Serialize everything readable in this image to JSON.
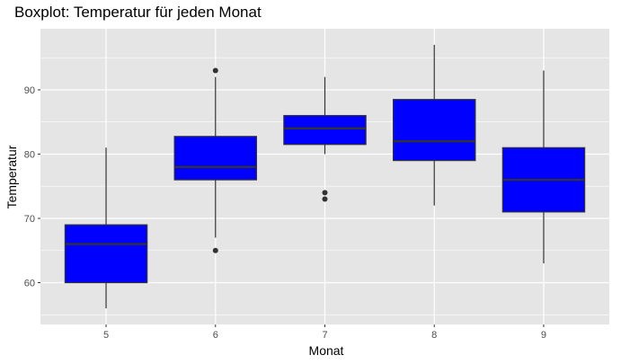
{
  "chart_data": {
    "type": "boxplot",
    "title": "Boxplot: Temperatur für jeden Monat",
    "xlabel": "Monat",
    "ylabel": "Temperatur",
    "categories": [
      "5",
      "6",
      "7",
      "8",
      "9"
    ],
    "ylim": [
      53.5,
      99.5
    ],
    "yticks": [
      60,
      70,
      80,
      90
    ],
    "grid": true,
    "box_fill": "#0000ff",
    "panel_background": "#e5e5e5",
    "grid_color": "#ffffff",
    "boxes": [
      {
        "category": "5",
        "whisker_low": 56,
        "q1": 60,
        "median": 66,
        "q3": 69,
        "whisker_high": 81,
        "outliers": []
      },
      {
        "category": "6",
        "whisker_low": 67,
        "q1": 76,
        "median": 78,
        "q3": 82.75,
        "whisker_high": 92,
        "outliers": [
          65,
          93
        ]
      },
      {
        "category": "7",
        "whisker_low": 80,
        "q1": 81.5,
        "median": 84,
        "q3": 86,
        "whisker_high": 92,
        "outliers": [
          73,
          74
        ]
      },
      {
        "category": "8",
        "whisker_low": 72,
        "q1": 79,
        "median": 82,
        "q3": 88.5,
        "whisker_high": 97,
        "outliers": []
      },
      {
        "category": "9",
        "whisker_low": 63,
        "q1": 71,
        "median": 76,
        "q3": 81,
        "whisker_high": 93,
        "outliers": []
      }
    ]
  }
}
